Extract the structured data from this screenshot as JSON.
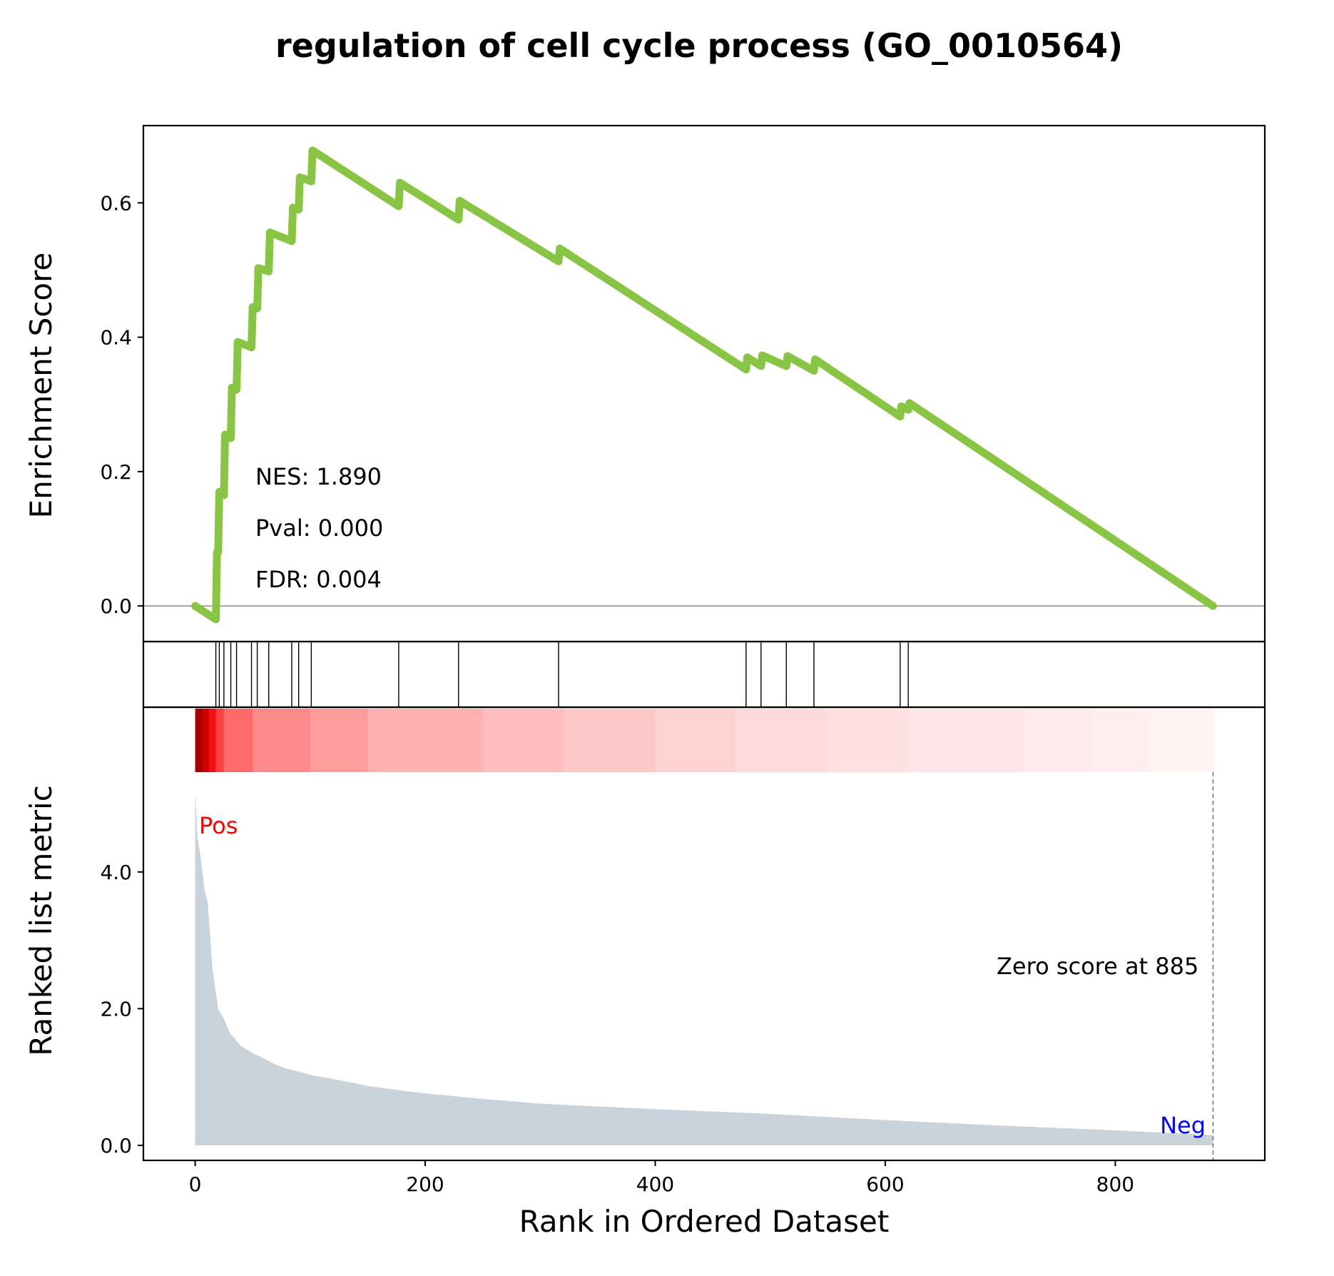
{
  "chart_data": {
    "type": "line",
    "title": "regulation of cell cycle process (GO_0010564)",
    "xlabel": "Rank in Ordered Dataset",
    "xlim": [
      -45,
      930
    ],
    "x_ticks": [
      0,
      200,
      400,
      600,
      800
    ],
    "x_tick_labels": [
      "0",
      "200",
      "400",
      "600",
      "800"
    ],
    "enrichment": {
      "ylabel": "Enrichment Score",
      "ylim": [
        -0.053,
        0.715
      ],
      "y_ticks": [
        0.0,
        0.2,
        0.4,
        0.6
      ],
      "y_tick_labels": [
        "0.0",
        "0.2",
        "0.4",
        "0.6"
      ],
      "color": "#88c544",
      "x": [
        0,
        18,
        19,
        20,
        21,
        22,
        25,
        26,
        31,
        32,
        36,
        37,
        49,
        50,
        54,
        55,
        64,
        65,
        84,
        85,
        90,
        91,
        101,
        102,
        177,
        178,
        229,
        230,
        316,
        317,
        479,
        480,
        492,
        493,
        514,
        515,
        538,
        539,
        613,
        614,
        620,
        621,
        885
      ],
      "y": [
        0.0,
        -0.02,
        0.08,
        0.08,
        0.17,
        0.17,
        0.165,
        0.255,
        0.25,
        0.325,
        0.322,
        0.393,
        0.385,
        0.445,
        0.443,
        0.503,
        0.498,
        0.556,
        0.543,
        0.593,
        0.59,
        0.638,
        0.632,
        0.678,
        0.595,
        0.63,
        0.575,
        0.603,
        0.513,
        0.532,
        0.352,
        0.37,
        0.357,
        0.373,
        0.357,
        0.372,
        0.35,
        0.367,
        0.282,
        0.297,
        0.292,
        0.302,
        0.0
      ],
      "stats": [
        "NES: 1.890",
        "Pval: 0.000",
        "FDR: 0.004"
      ]
    },
    "hits": [
      18,
      21,
      25,
      31,
      36,
      49,
      54,
      64,
      84,
      90,
      101,
      177,
      229,
      316,
      479,
      492,
      514,
      538,
      613,
      620
    ],
    "heatmap": {
      "colors": [
        "#a80000",
        "#d00000",
        "#f51010",
        "#ff4040",
        "#ff6a6a",
        "#ff8a8a",
        "#ff9c9c",
        "#ffb0b0",
        "#ffbdbd",
        "#ffc8c8",
        "#ffd3d3",
        "#ffdada",
        "#ffe0e0",
        "#ffe6e6",
        "#ffebeb",
        "#ffefef",
        "#fff3f3",
        "#fff7f7"
      ],
      "stops": [
        0,
        6,
        12,
        18,
        25,
        50,
        100,
        150,
        250,
        320,
        400,
        470,
        550,
        620,
        720,
        780,
        830,
        885
      ]
    },
    "ranked_metric": {
      "ylabel": "Ranked list metric",
      "ylim": [
        -0.22,
        5.46
      ],
      "y_ticks": [
        0.0,
        2.0,
        4.0
      ],
      "y_tick_labels": [
        "0.0",
        "2.0",
        "4.0"
      ],
      "color": "#c9d3dc",
      "x": [
        0,
        2,
        5,
        8,
        11,
        15,
        20,
        25,
        30,
        40,
        50,
        60,
        70,
        80,
        90,
        100,
        120,
        150,
        180,
        200,
        250,
        300,
        400,
        500,
        600,
        700,
        800,
        885
      ],
      "y": [
        5.18,
        4.5,
        4.2,
        3.75,
        3.55,
        2.6,
        2.0,
        1.85,
        1.65,
        1.45,
        1.35,
        1.27,
        1.18,
        1.12,
        1.08,
        1.03,
        0.97,
        0.87,
        0.8,
        0.76,
        0.68,
        0.61,
        0.53,
        0.46,
        0.37,
        0.29,
        0.22,
        0.15
      ],
      "pos_label": "Pos",
      "neg_label": "Neg",
      "zero_score_label": "Zero score at 885",
      "zero_score_at": 885
    }
  }
}
